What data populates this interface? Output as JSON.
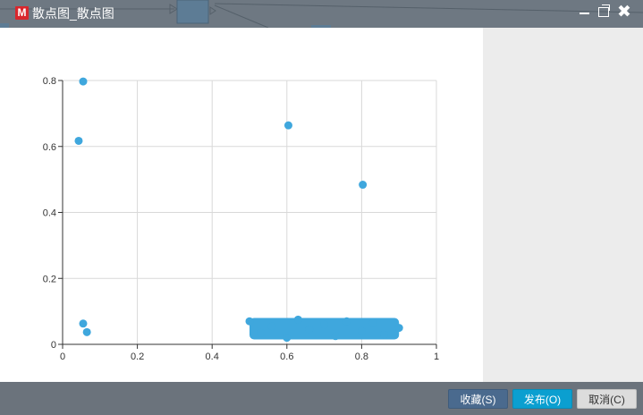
{
  "window": {
    "title": "散点图_散点图",
    "logo_letter": "M"
  },
  "footer": {
    "favorite_label": "收藏(S)",
    "publish_label": "发布(O)",
    "cancel_label": "取消(C)"
  },
  "colors": {
    "point": "#3fa7dd",
    "titlebar": "#6e7882",
    "publish": "#0b9fd0"
  },
  "chart_data": {
    "type": "scatter",
    "xlim": [
      0,
      1
    ],
    "ylim": [
      0,
      0.8
    ],
    "x_ticks": [
      "0",
      "0.2",
      "0.4",
      "0.6",
      "0.8",
      "1"
    ],
    "y_ticks": [
      "0",
      "0.2",
      "0.4",
      "0.6",
      "0.8"
    ],
    "grid": true,
    "series": [
      {
        "points": [
          [
            0.055,
            0.797
          ],
          [
            0.043,
            0.617
          ],
          [
            0.604,
            0.664
          ],
          [
            0.803,
            0.484
          ],
          [
            0.055,
            0.063
          ],
          [
            0.065,
            0.037
          ],
          [
            0.5,
            0.07
          ],
          [
            0.53,
            0.035
          ],
          [
            0.56,
            0.055
          ],
          [
            0.6,
            0.02
          ],
          [
            0.63,
            0.075
          ],
          [
            0.66,
            0.045
          ],
          [
            0.7,
            0.06
          ],
          [
            0.73,
            0.025
          ],
          [
            0.76,
            0.07
          ],
          [
            0.8,
            0.04
          ],
          [
            0.83,
            0.065
          ],
          [
            0.86,
            0.03
          ],
          [
            0.9,
            0.05
          ]
        ]
      }
    ],
    "dense_band": {
      "x_range": [
        0.5,
        0.9
      ],
      "y_range": [
        0.015,
        0.08
      ]
    }
  }
}
